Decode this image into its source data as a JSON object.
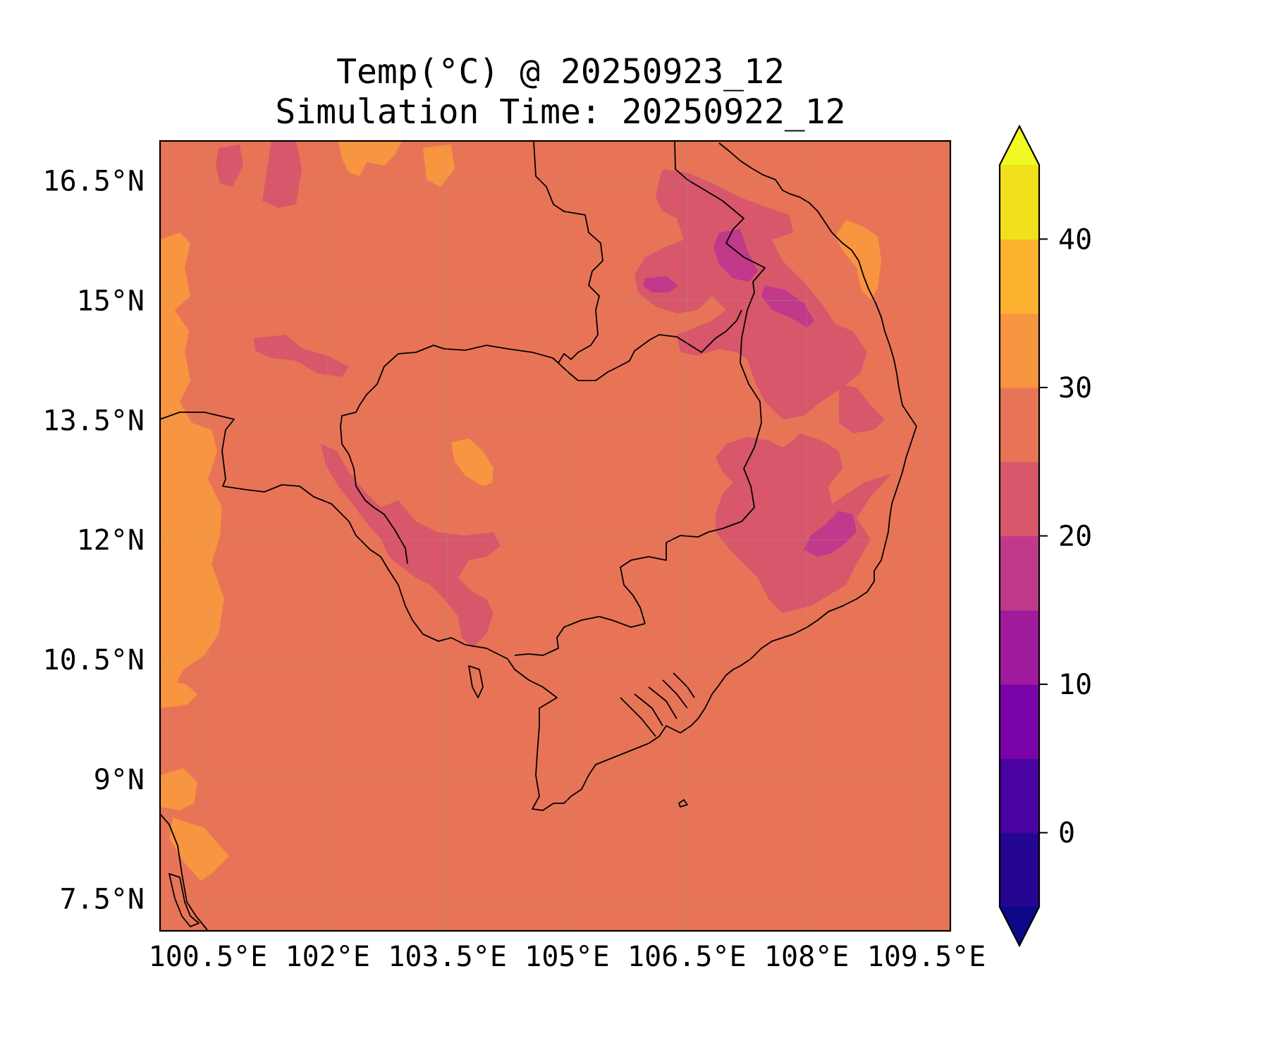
{
  "title": {
    "line1": "Temp(°C) @ 20250923_12",
    "line2": "Simulation Time: 20250922_12"
  },
  "map": {
    "background_color": "#e87457",
    "lon_range": [
      99.9,
      109.8
    ],
    "lat_range": [
      7.1,
      17.0
    ],
    "lon_ticks": [
      {
        "value": 100.5,
        "label": "100.5°E"
      },
      {
        "value": 102.0,
        "label": "102°E"
      },
      {
        "value": 103.5,
        "label": "103.5°E"
      },
      {
        "value": 105.0,
        "label": "105°E"
      },
      {
        "value": 106.5,
        "label": "106.5°E"
      },
      {
        "value": 108.0,
        "label": "108°E"
      },
      {
        "value": 109.5,
        "label": "109.5°E"
      }
    ],
    "lat_ticks": [
      {
        "value": 16.5,
        "label": "16.5°N"
      },
      {
        "value": 15.0,
        "label": "15°N"
      },
      {
        "value": 13.5,
        "label": "13.5°N"
      },
      {
        "value": 12.0,
        "label": "12°N"
      },
      {
        "value": 10.5,
        "label": "10.5°N"
      },
      {
        "value": 9.0,
        "label": "9°N"
      },
      {
        "value": 7.5,
        "label": "7.5°N"
      }
    ]
  },
  "colorbar": {
    "bounds": [
      -5,
      0,
      5,
      10,
      15,
      20,
      25,
      30,
      35,
      40,
      45
    ],
    "colors": [
      "#240691",
      "#4a03a1",
      "#7a03a7",
      "#a01a9c",
      "#c0398a",
      "#d8576b",
      "#e87457",
      "#f89540",
      "#fdb32f",
      "#f1e11c"
    ],
    "under_color": "#0d0887",
    "over_color": "#f0f921",
    "ticks": [
      {
        "value": 0,
        "label": "0"
      },
      {
        "value": 10,
        "label": "10"
      },
      {
        "value": 20,
        "label": "20"
      },
      {
        "value": 30,
        "label": "30"
      },
      {
        "value": 40,
        "label": "40"
      }
    ]
  }
}
